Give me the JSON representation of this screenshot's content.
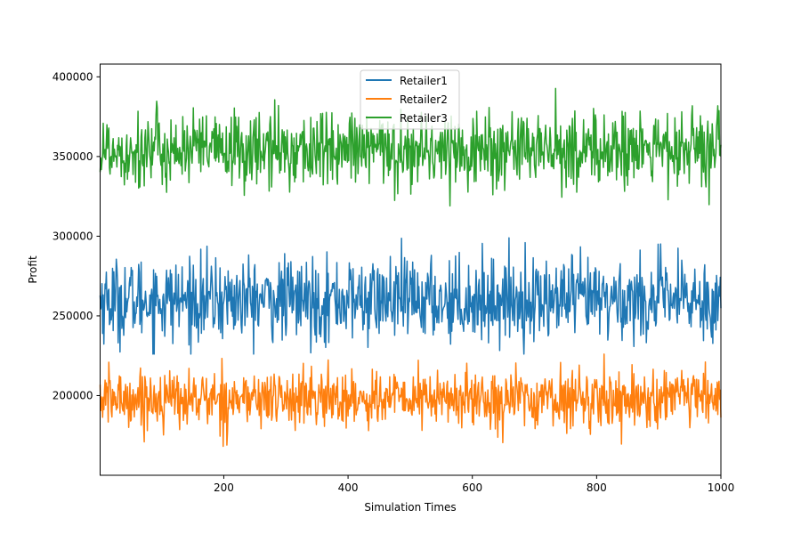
{
  "chart_data": {
    "type": "line",
    "title": "",
    "xlabel": "Simulation Times",
    "ylabel": "Profit",
    "xlim": [
      1,
      1000
    ],
    "ylim": [
      150000,
      408000
    ],
    "x_ticks": [
      200,
      400,
      600,
      800,
      1000
    ],
    "y_ticks": [
      200000,
      250000,
      300000,
      350000,
      400000
    ],
    "grid": false,
    "legend_position": "top-center",
    "x_range": [
      1,
      1000
    ],
    "series": [
      {
        "name": "Retailer1",
        "color": "#1f77b4",
        "mean": 260000,
        "spread": 13000,
        "min": 226000,
        "max": 309000
      },
      {
        "name": "Retailer2",
        "color": "#ff7f0e",
        "mean": 198000,
        "spread": 9000,
        "min": 165000,
        "max": 226000
      },
      {
        "name": "Retailer3",
        "color": "#2ca02c",
        "mean": 354000,
        "spread": 12000,
        "min": 319000,
        "max": 396000
      }
    ]
  }
}
